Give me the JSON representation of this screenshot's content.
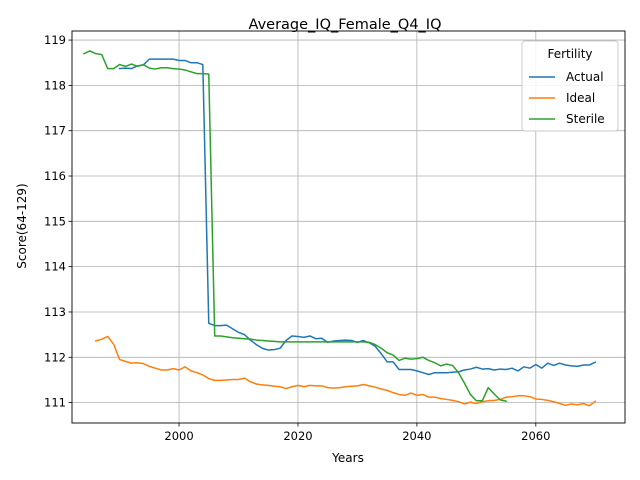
{
  "chart_data": {
    "type": "line",
    "title": "Average_IQ_Female_Q4_IQ",
    "xlabel": "Years",
    "ylabel": "Score(64-129)",
    "xlim": [
      1982,
      2075
    ],
    "ylim": [
      110.55,
      119.2
    ],
    "xticks": [
      2000,
      2020,
      2040,
      2060
    ],
    "yticks": [
      111,
      112,
      113,
      114,
      115,
      116,
      117,
      118,
      119
    ],
    "grid": true,
    "legend": {
      "title": "Fertility",
      "position": "top-right"
    },
    "series": [
      {
        "name": "Actual",
        "color": "#1f77b4",
        "points": [
          [
            1990,
            118.37
          ],
          [
            1991,
            118.38
          ],
          [
            1992,
            118.37
          ],
          [
            1993,
            118.43
          ],
          [
            1994,
            118.45
          ],
          [
            1995,
            118.58
          ],
          [
            1996,
            118.58
          ],
          [
            1997,
            118.58
          ],
          [
            1998,
            118.58
          ],
          [
            1999,
            118.58
          ],
          [
            2000,
            118.55
          ],
          [
            2001,
            118.55
          ],
          [
            2002,
            118.5
          ],
          [
            2003,
            118.5
          ],
          [
            2004,
            118.46
          ],
          [
            2005,
            112.75
          ],
          [
            2006,
            112.7
          ],
          [
            2007,
            112.7
          ],
          [
            2008,
            112.71
          ],
          [
            2009,
            112.63
          ],
          [
            2010,
            112.55
          ],
          [
            2011,
            112.5
          ],
          [
            2012,
            112.38
          ],
          [
            2013,
            112.28
          ],
          [
            2014,
            112.2
          ],
          [
            2015,
            112.16
          ],
          [
            2016,
            112.17
          ],
          [
            2017,
            112.2
          ],
          [
            2018,
            112.37
          ],
          [
            2019,
            112.47
          ],
          [
            2020,
            112.46
          ],
          [
            2021,
            112.44
          ],
          [
            2022,
            112.47
          ],
          [
            2023,
            112.41
          ],
          [
            2024,
            112.42
          ],
          [
            2025,
            112.33
          ],
          [
            2026,
            112.36
          ],
          [
            2027,
            112.37
          ],
          [
            2028,
            112.38
          ],
          [
            2029,
            112.37
          ],
          [
            2030,
            112.33
          ],
          [
            2031,
            112.37
          ],
          [
            2032,
            112.32
          ],
          [
            2033,
            112.24
          ],
          [
            2034,
            112.08
          ],
          [
            2035,
            111.9
          ],
          [
            2036,
            111.9
          ],
          [
            2037,
            111.73
          ],
          [
            2038,
            111.73
          ],
          [
            2039,
            111.73
          ],
          [
            2040,
            111.7
          ],
          [
            2041,
            111.66
          ],
          [
            2042,
            111.62
          ],
          [
            2043,
            111.66
          ],
          [
            2044,
            111.66
          ],
          [
            2045,
            111.66
          ],
          [
            2046,
            111.67
          ],
          [
            2047,
            111.68
          ],
          [
            2048,
            111.72
          ],
          [
            2049,
            111.74
          ],
          [
            2050,
            111.78
          ],
          [
            2051,
            111.74
          ],
          [
            2052,
            111.75
          ],
          [
            2053,
            111.72
          ],
          [
            2054,
            111.74
          ],
          [
            2055,
            111.73
          ],
          [
            2056,
            111.76
          ],
          [
            2057,
            111.7
          ],
          [
            2058,
            111.79
          ],
          [
            2059,
            111.76
          ],
          [
            2060,
            111.84
          ],
          [
            2061,
            111.76
          ],
          [
            2062,
            111.87
          ],
          [
            2063,
            111.82
          ],
          [
            2064,
            111.87
          ],
          [
            2065,
            111.83
          ],
          [
            2066,
            111.81
          ],
          [
            2067,
            111.8
          ],
          [
            2068,
            111.83
          ],
          [
            2069,
            111.83
          ],
          [
            2070,
            111.89
          ]
        ]
      },
      {
        "name": "Ideal",
        "color": "#ff7f0e",
        "points": [
          [
            1986,
            112.36
          ],
          [
            1987,
            112.4
          ],
          [
            1988,
            112.46
          ],
          [
            1989,
            112.29
          ],
          [
            1990,
            111.95
          ],
          [
            1991,
            111.91
          ],
          [
            1992,
            111.87
          ],
          [
            1993,
            111.88
          ],
          [
            1994,
            111.86
          ],
          [
            1995,
            111.8
          ],
          [
            1996,
            111.76
          ],
          [
            1997,
            111.72
          ],
          [
            1998,
            111.72
          ],
          [
            1999,
            111.75
          ],
          [
            2000,
            111.72
          ],
          [
            2001,
            111.79
          ],
          [
            2002,
            111.7
          ],
          [
            2003,
            111.66
          ],
          [
            2004,
            111.61
          ],
          [
            2005,
            111.53
          ],
          [
            2006,
            111.49
          ],
          [
            2007,
            111.49
          ],
          [
            2008,
            111.5
          ],
          [
            2009,
            111.51
          ],
          [
            2010,
            111.51
          ],
          [
            2011,
            111.54
          ],
          [
            2012,
            111.46
          ],
          [
            2013,
            111.41
          ],
          [
            2014,
            111.39
          ],
          [
            2015,
            111.38
          ],
          [
            2016,
            111.36
          ],
          [
            2017,
            111.35
          ],
          [
            2018,
            111.31
          ],
          [
            2019,
            111.35
          ],
          [
            2020,
            111.38
          ],
          [
            2021,
            111.35
          ],
          [
            2022,
            111.38
          ],
          [
            2023,
            111.37
          ],
          [
            2024,
            111.37
          ],
          [
            2025,
            111.33
          ],
          [
            2026,
            111.32
          ],
          [
            2027,
            111.33
          ],
          [
            2028,
            111.35
          ],
          [
            2029,
            111.36
          ],
          [
            2030,
            111.37
          ],
          [
            2031,
            111.4
          ],
          [
            2032,
            111.37
          ],
          [
            2033,
            111.34
          ],
          [
            2034,
            111.3
          ],
          [
            2035,
            111.27
          ],
          [
            2036,
            111.22
          ],
          [
            2037,
            111.18
          ],
          [
            2038,
            111.16
          ],
          [
            2039,
            111.21
          ],
          [
            2040,
            111.16
          ],
          [
            2041,
            111.18
          ],
          [
            2042,
            111.12
          ],
          [
            2043,
            111.12
          ],
          [
            2044,
            111.09
          ],
          [
            2045,
            111.07
          ],
          [
            2046,
            111.05
          ],
          [
            2047,
            111.02
          ],
          [
            2048,
            110.97
          ],
          [
            2049,
            111.01
          ],
          [
            2050,
            110.98
          ],
          [
            2051,
            111.02
          ],
          [
            2052,
            111.04
          ],
          [
            2053,
            111.05
          ],
          [
            2054,
            111.07
          ],
          [
            2055,
            111.12
          ],
          [
            2056,
            111.13
          ],
          [
            2057,
            111.15
          ],
          [
            2058,
            111.15
          ],
          [
            2059,
            111.13
          ],
          [
            2060,
            111.08
          ],
          [
            2061,
            111.07
          ],
          [
            2062,
            111.05
          ],
          [
            2063,
            111.02
          ],
          [
            2064,
            110.98
          ],
          [
            2065,
            110.94
          ],
          [
            2066,
            110.97
          ],
          [
            2067,
            110.95
          ],
          [
            2068,
            110.98
          ],
          [
            2069,
            110.93
          ],
          [
            2070,
            111.03
          ]
        ]
      },
      {
        "name": "Sterile",
        "color": "#2ca02c",
        "points": [
          [
            1984,
            118.7
          ],
          [
            1985,
            118.76
          ],
          [
            1986,
            118.7
          ],
          [
            1987,
            118.68
          ],
          [
            1988,
            118.37
          ],
          [
            1989,
            118.37
          ],
          [
            1990,
            118.46
          ],
          [
            1991,
            118.42
          ],
          [
            1992,
            118.47
          ],
          [
            1993,
            118.42
          ],
          [
            1994,
            118.46
          ],
          [
            1995,
            118.38
          ],
          [
            1996,
            118.36
          ],
          [
            1997,
            118.39
          ],
          [
            1998,
            118.39
          ],
          [
            1999,
            118.37
          ],
          [
            2000,
            118.36
          ],
          [
            2001,
            118.34
          ],
          [
            2002,
            118.3
          ],
          [
            2003,
            118.26
          ],
          [
            2004,
            118.26
          ],
          [
            2005,
            118.25
          ],
          [
            2006,
            112.47
          ],
          [
            2007,
            112.47
          ],
          [
            2008,
            112.45
          ],
          [
            2009,
            112.43
          ],
          [
            2010,
            112.42
          ],
          [
            2011,
            112.41
          ],
          [
            2012,
            112.4
          ],
          [
            2013,
            112.38
          ],
          [
            2014,
            112.37
          ],
          [
            2015,
            112.36
          ],
          [
            2016,
            112.35
          ],
          [
            2017,
            112.34
          ],
          [
            2018,
            112.34
          ],
          [
            2019,
            112.34
          ],
          [
            2020,
            112.34
          ],
          [
            2021,
            112.34
          ],
          [
            2022,
            112.34
          ],
          [
            2023,
            112.34
          ],
          [
            2024,
            112.34
          ],
          [
            2025,
            112.34
          ],
          [
            2026,
            112.34
          ],
          [
            2027,
            112.34
          ],
          [
            2028,
            112.34
          ],
          [
            2029,
            112.34
          ],
          [
            2030,
            112.34
          ],
          [
            2031,
            112.34
          ],
          [
            2032,
            112.33
          ],
          [
            2033,
            112.28
          ],
          [
            2034,
            112.2
          ],
          [
            2035,
            112.1
          ],
          [
            2036,
            112.05
          ],
          [
            2037,
            111.93
          ],
          [
            2038,
            111.98
          ],
          [
            2039,
            111.96
          ],
          [
            2040,
            111.97
          ],
          [
            2041,
            112.0
          ],
          [
            2042,
            111.93
          ],
          [
            2043,
            111.88
          ],
          [
            2044,
            111.81
          ],
          [
            2045,
            111.85
          ],
          [
            2046,
            111.82
          ],
          [
            2047,
            111.66
          ],
          [
            2048,
            111.43
          ],
          [
            2049,
            111.18
          ],
          [
            2050,
            111.04
          ],
          [
            2051,
            111.04
          ],
          [
            2052,
            111.33
          ],
          [
            2053,
            111.19
          ],
          [
            2054,
            111.06
          ],
          [
            2055,
            111.03
          ]
        ]
      }
    ]
  }
}
